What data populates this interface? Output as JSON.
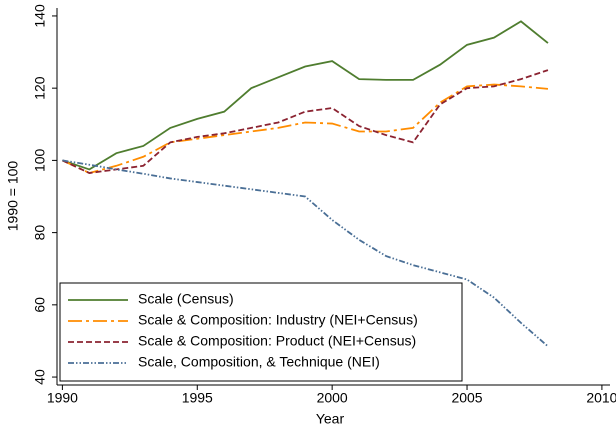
{
  "chart_data": {
    "type": "line",
    "x_label": "Year",
    "y_label": "1990 = 100",
    "x": [
      1990,
      1991,
      1992,
      1993,
      1994,
      1995,
      1996,
      1997,
      1998,
      1999,
      2000,
      2001,
      2002,
      2003,
      2004,
      2005,
      2006,
      2007,
      2008
    ],
    "series": [
      {
        "name": "Scale (Census)",
        "color": "#4f7d2f",
        "dash": "",
        "values": [
          100,
          97.5,
          102,
          104,
          109,
          111.5,
          113.5,
          120,
          123,
          126,
          127.5,
          122.5,
          122.3,
          122.3,
          126.5,
          132,
          134,
          138.5,
          132.5
        ]
      },
      {
        "name": "Scale & Composition: Industry (NEI+Census)",
        "color": "#ff8c00",
        "dash": "14 4 3 4",
        "values": [
          100,
          96.5,
          98.5,
          101,
          105,
          106,
          107,
          108,
          109,
          110.5,
          110.2,
          108,
          108,
          109,
          116,
          120.5,
          121,
          120.5,
          119.8
        ]
      },
      {
        "name": "Scale & Composition: Product (NEI+Census)",
        "color": "#8b2331",
        "dash": "6 3",
        "values": [
          100,
          96.5,
          97.5,
          98.5,
          105,
          106.5,
          107.5,
          109,
          110.5,
          113.5,
          114.5,
          109.5,
          107,
          105,
          115.5,
          120,
          120.5,
          122.5,
          125
        ]
      },
      {
        "name": "Scale, Composition, & Technique (NEI)",
        "color": "#4a6f96",
        "dash": "6 2 1.5 2 1.5 2",
        "values": [
          100,
          98.8,
          97.5,
          96.3,
          95,
          94,
          93,
          92,
          91,
          90,
          83.5,
          78,
          73.5,
          71,
          69,
          67,
          62,
          55,
          48.5
        ]
      }
    ],
    "xlim": [
      1989.8,
      2010.3
    ],
    "xticks": [
      1990,
      1995,
      2000,
      2005,
      2010
    ],
    "ylim": [
      37.8,
      142.2
    ],
    "yticks": [
      40,
      60,
      80,
      100,
      120,
      140
    ],
    "grid": false,
    "legend": "bottom-left"
  }
}
